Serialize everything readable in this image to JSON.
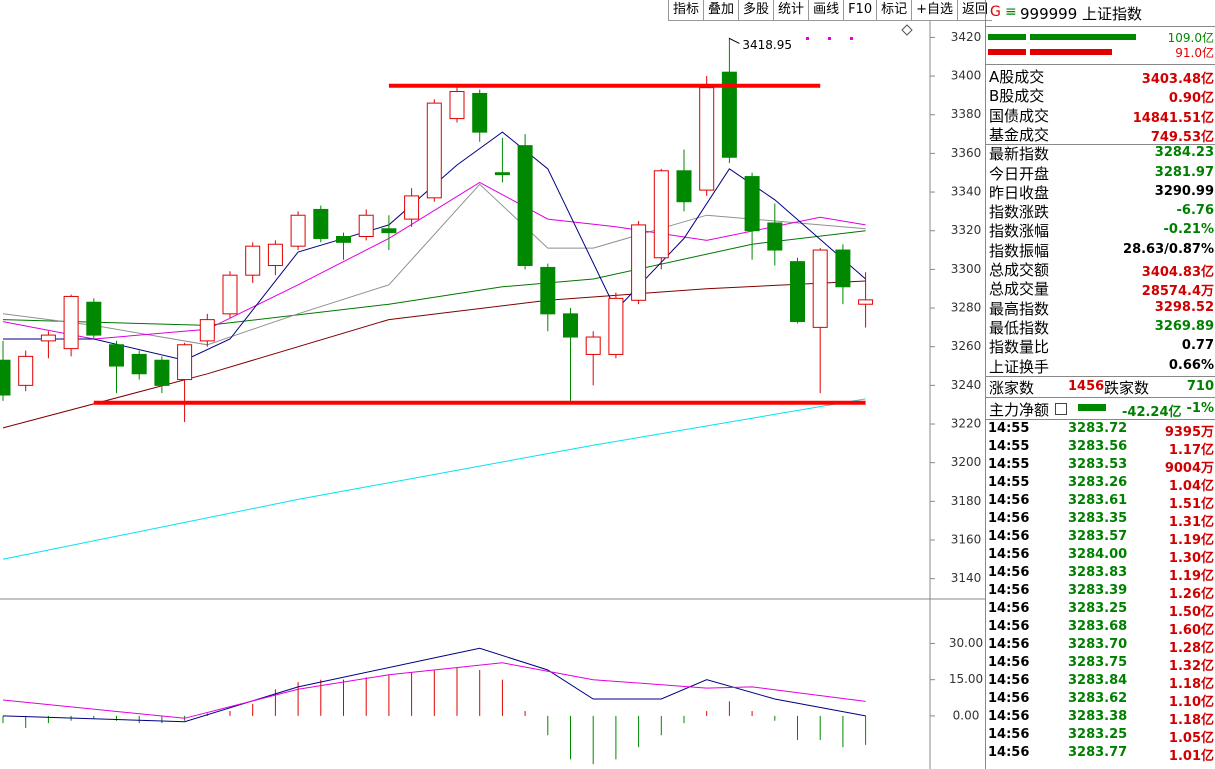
{
  "toolbar": [
    "指标",
    "叠加",
    "多股",
    "统计",
    "画线",
    "F10",
    "标记",
    "+自选",
    "返回"
  ],
  "chart_data": [
    {
      "type": "candlestick",
      "up_color": "#e00000",
      "down_color": "#008800",
      "ylim": [
        3130,
        3429
      ],
      "yticks": [
        3140,
        3160,
        3180,
        3200,
        3220,
        3240,
        3260,
        3280,
        3300,
        3320,
        3340,
        3360,
        3380,
        3400,
        3420
      ],
      "candles": {
        "open": [
          3253,
          3240,
          3263,
          3259,
          3283,
          3261,
          3256,
          3253,
          3243,
          3263,
          3277,
          3297,
          3302,
          3312,
          3331,
          3317,
          3317,
          3321,
          3326,
          3337,
          3378,
          3391,
          3350,
          3364,
          3301,
          3277,
          3256,
          3256,
          3284,
          3306,
          3351,
          3341,
          3402,
          3348,
          3324,
          3304,
          3270,
          3310,
          3281.97
        ],
        "high": [
          3263,
          3258,
          3268,
          3287,
          3285,
          3263,
          3258,
          3255,
          3262,
          3277,
          3299,
          3314,
          3315,
          3330,
          3333,
          3319,
          3331,
          3328,
          3342,
          3388,
          3395,
          3393,
          3368,
          3370,
          3303,
          3280,
          3268,
          3288,
          3325,
          3352,
          3362,
          3400,
          3418.95,
          3350,
          3334,
          3306,
          3311,
          3313,
          3298.52
        ],
        "low": [
          3232,
          3237,
          3254,
          3255,
          3264,
          3236,
          3243,
          3236,
          3221,
          3260,
          3275,
          3293,
          3297,
          3310,
          3314,
          3305,
          3315,
          3310,
          3322,
          3335,
          3376,
          3366,
          3345,
          3300,
          3268,
          3232,
          3240,
          3254,
          3282,
          3300,
          3330,
          3338,
          3355,
          3305,
          3302,
          3272,
          3236,
          3282,
          3269.89
        ],
        "close": [
          3235,
          3255,
          3266,
          3286,
          3266,
          3250,
          3246,
          3240,
          3261,
          3274,
          3297,
          3312,
          3313,
          3328,
          3316,
          3314,
          3328,
          3319,
          3338,
          3386,
          3392,
          3371,
          3349,
          3302,
          3277,
          3265,
          3265,
          3285,
          3323,
          3351,
          3335,
          3394,
          3358,
          3320,
          3310,
          3273,
          3310,
          3291,
          3284.23
        ]
      },
      "high_label_index": 32,
      "series": [
        {
          "color": "#00e5ee",
          "x": [
            0,
            13,
            26,
            38
          ],
          "values": [
            3150,
            3181,
            3209,
            3233
          ]
        },
        {
          "color": "#800000",
          "x": [
            0,
            9,
            17,
            24,
            31,
            38
          ],
          "values": [
            3218,
            3246,
            3274,
            3284,
            3290,
            3294
          ]
        },
        {
          "color": "#007700",
          "x": [
            0,
            9,
            17,
            22,
            26,
            33,
            38
          ],
          "values": [
            3274,
            3271,
            3282,
            3291,
            3295,
            3313,
            3320
          ]
        },
        {
          "color": "#909090",
          "x": [
            0,
            4,
            9,
            13,
            17,
            21,
            24,
            26,
            31,
            38
          ],
          "values": [
            3277,
            3271,
            3261,
            3277,
            3292,
            3344,
            3311,
            3311,
            3328,
            3321
          ]
        },
        {
          "color": "#e000e0",
          "x": [
            0,
            4,
            9,
            13,
            17,
            21,
            24,
            27,
            31,
            36,
            38
          ],
          "values": [
            3273,
            3264,
            3269,
            3292,
            3316,
            3345,
            3326,
            3322,
            3315,
            3327,
            3323
          ]
        },
        {
          "color": "#000080",
          "x": [
            0,
            4,
            8,
            10,
            13,
            17,
            20,
            22,
            24,
            27,
            30,
            32,
            34,
            38
          ],
          "values": [
            3264,
            3264,
            3253,
            3264,
            3309,
            3323,
            3354,
            3371,
            3352,
            3279,
            3316,
            3352,
            3336,
            3295
          ]
        }
      ],
      "levels": [
        {
          "value": 3395,
          "from": 17,
          "to": 36,
          "color": "#ff0000"
        },
        {
          "value": 3231,
          "from": 4,
          "to": 38,
          "color": "#ff0000"
        }
      ]
    },
    {
      "type": "macd",
      "up_color": "#e00000",
      "down_color": "#008800",
      "ylim": [
        -22,
        48
      ],
      "yticks": [
        {
          "value": 0,
          "label": "0.00"
        },
        {
          "value": 15,
          "label": "15.00"
        },
        {
          "value": 30,
          "label": "30.00"
        }
      ],
      "values": [
        -3,
        -5,
        -3,
        -2,
        -1,
        -2,
        -3,
        -3,
        -2,
        1,
        2,
        5,
        11,
        14,
        15,
        15,
        16,
        17,
        18,
        19,
        20,
        19,
        15,
        2,
        -8,
        -18,
        -20,
        -18,
        -13,
        -8,
        -3,
        2,
        6,
        2,
        -2,
        -10,
        -10,
        -13,
        -12
      ],
      "series": [
        {
          "color": "#000080",
          "x": [
            0,
            8,
            13,
            19,
            21,
            24,
            26,
            29,
            31,
            34,
            38
          ],
          "values": [
            0,
            -2.4,
            12,
            24,
            28,
            19,
            7,
            7,
            15,
            7,
            0
          ]
        },
        {
          "color": "#e000e0",
          "x": [
            0,
            8,
            13,
            17,
            22,
            26,
            31,
            33,
            38
          ],
          "values": [
            6.6,
            -1,
            11,
            17,
            22,
            15,
            11.5,
            12,
            6
          ]
        }
      ]
    }
  ],
  "panel": {
    "header": {
      "mark": "G",
      "icon": "≡",
      "title": "999999 上证指数"
    },
    "flows": [
      {
        "value": 109.0,
        "label": "109.0亿",
        "color": "#008800"
      },
      {
        "value": 91.0,
        "label": "91.0亿",
        "color": "#e00000"
      }
    ],
    "stats": [
      {
        "label": "A股成交",
        "value": "3403.48亿",
        "color": "#d00000"
      },
      {
        "label": "B股成交",
        "value": "0.90亿",
        "color": "#d00000"
      },
      {
        "label": "国债成交",
        "value": "14841.51亿",
        "color": "#d00000"
      },
      {
        "label": "基金成交",
        "value": "749.53亿",
        "color": "#d00000"
      },
      {
        "label": "最新指数",
        "value": "3284.23",
        "color": "#008000"
      },
      {
        "label": "今日开盘",
        "value": "3281.97",
        "color": "#008000"
      },
      {
        "label": "昨日收盘",
        "value": "3290.99",
        "color": "#000000"
      },
      {
        "label": "指数涨跌",
        "value": "-6.76",
        "color": "#008000"
      },
      {
        "label": "指数涨幅",
        "value": "-0.21%",
        "color": "#008000"
      },
      {
        "label": "指数振幅",
        "value": "28.63/0.87%",
        "color": "#000000"
      },
      {
        "label": "总成交额",
        "value": "3404.83亿",
        "color": "#d00000"
      },
      {
        "label": "总成交量",
        "value": "28574.4万",
        "color": "#d00000"
      },
      {
        "label": "最高指数",
        "value": "3298.52",
        "color": "#d00000"
      },
      {
        "label": "最低指数",
        "value": "3269.89",
        "color": "#008000"
      },
      {
        "label": "指数量比",
        "value": "0.77",
        "color": "#000000"
      },
      {
        "label": "上证换手",
        "value": "0.66%",
        "color": "#000000"
      }
    ],
    "breadth": {
      "up_label": "涨家数",
      "up": 1456,
      "down_label": "跌家数",
      "down": 710
    },
    "main_flow": {
      "label": "主力净额",
      "value": "-42.24亿",
      "pct": "-1%"
    },
    "ticks": [
      [
        "14:55",
        "3283.72",
        "9395万"
      ],
      [
        "14:55",
        "3283.56",
        "1.17亿"
      ],
      [
        "14:55",
        "3283.53",
        "9004万"
      ],
      [
        "14:55",
        "3283.26",
        "1.04亿"
      ],
      [
        "14:56",
        "3283.61",
        "1.51亿"
      ],
      [
        "14:56",
        "3283.35",
        "1.31亿"
      ],
      [
        "14:56",
        "3283.57",
        "1.19亿"
      ],
      [
        "14:56",
        "3284.00",
        "1.30亿"
      ],
      [
        "14:56",
        "3283.83",
        "1.19亿"
      ],
      [
        "14:56",
        "3283.39",
        "1.26亿"
      ],
      [
        "14:56",
        "3283.25",
        "1.50亿"
      ],
      [
        "14:56",
        "3283.68",
        "1.60亿"
      ],
      [
        "14:56",
        "3283.70",
        "1.28亿"
      ],
      [
        "14:56",
        "3283.75",
        "1.32亿"
      ],
      [
        "14:56",
        "3283.84",
        "1.18亿"
      ],
      [
        "14:56",
        "3283.62",
        "1.10亿"
      ],
      [
        "14:56",
        "3283.38",
        "1.18亿"
      ],
      [
        "14:56",
        "3283.25",
        "1.05亿"
      ],
      [
        "14:56",
        "3283.77",
        "1.01亿"
      ]
    ]
  }
}
